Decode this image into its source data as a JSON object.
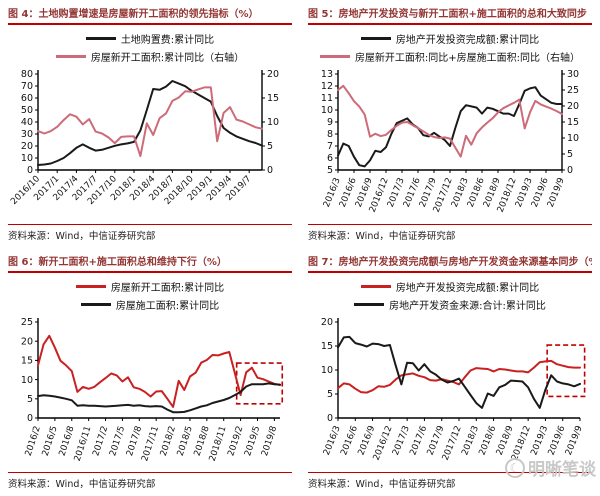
{
  "page": {
    "watermark": "明晰笔谈"
  },
  "colors": {
    "title": "#943634",
    "rule": "#c00000",
    "black_line": "#1a1a1a",
    "pink_line": "#cd6b78",
    "red_line": "#c92121",
    "highlight": "#c00000",
    "axis": "#000000",
    "watermark": "#c6c6c6"
  },
  "chart_data": [
    {
      "id": "fig4",
      "type": "line",
      "title": "图 4：土地购置增速是房屋新开工面积的领先指标（%）",
      "source": "资料来源：Wind，中信证券研究部",
      "x_count": 36,
      "x_tick_step": 3,
      "x_rotate": -45,
      "x_tick_labels": [
        "2016/10",
        "2017/1",
        "2017/4",
        "2017/7",
        "2017/10",
        "2018/1",
        "2018/4",
        "2018/7",
        "2018/10",
        "2019/1",
        "2019/4",
        "2019/7"
      ],
      "left_axis": {
        "min": 0,
        "max": 80,
        "step": 10
      },
      "right_axis": {
        "min": 0,
        "max": 20,
        "step": 5
      },
      "highlight": null,
      "series": [
        {
          "name": "土地购置费:累计同比",
          "color_key": "black_line",
          "axis": "left",
          "values": [
            4.2,
            4.6,
            5.4,
            7.5,
            10.0,
            14.0,
            18.5,
            21.3,
            18.5,
            16.2,
            16.8,
            18.5,
            20.2,
            21.3,
            22.2,
            23.4,
            33.0,
            50.0,
            67.5,
            66.8,
            69.5,
            74.2,
            72.0,
            69.8,
            66.0,
            63.0,
            60.0,
            57.0,
            45.0,
            35.0,
            31.0,
            28.0,
            26.0,
            24.0,
            22.5,
            20.3
          ]
        },
        {
          "name": "房屋新开工面积:累计同比（右轴）",
          "color_key": "pink_line",
          "axis": "right",
          "values": [
            8.1,
            7.6,
            8.1,
            9.0,
            10.4,
            11.6,
            11.1,
            9.5,
            10.6,
            8.0,
            7.6,
            6.8,
            5.6,
            6.9,
            7.0,
            7.0,
            2.9,
            9.7,
            7.3,
            10.8,
            11.8,
            14.4,
            15.1,
            16.4,
            16.3,
            16.8,
            17.2,
            17.2,
            6.0,
            11.9,
            13.1,
            10.5,
            10.1,
            9.5,
            8.9,
            8.6
          ]
        }
      ]
    },
    {
      "id": "fig5",
      "type": "line",
      "title": "图 5：房地产开发投资与新开工面积+施工面积的总和大致同步（%）",
      "source": "资料来源：Wind，中信证券研究部",
      "x_count": 43,
      "x_tick_step": 3,
      "x_rotate": -68,
      "x_tick_labels": [
        "2016/3",
        "2016/6",
        "2016/9",
        "2016/12",
        "2017/3",
        "2017/6",
        "2017/9",
        "2017/12",
        "2018/3",
        "2018/6",
        "2018/9",
        "2018/12",
        "2019/3",
        "2019/6",
        "2019/9"
      ],
      "left_axis": {
        "min": 5,
        "max": 13,
        "step": 1
      },
      "right_axis": {
        "min": 0,
        "max": 30,
        "step": 5
      },
      "highlight": null,
      "series": [
        {
          "name": "房地产开发投资完成额:累计同比",
          "color_key": "black_line",
          "axis": "left",
          "values": [
            6.2,
            7.2,
            7.0,
            6.1,
            5.4,
            5.3,
            5.8,
            6.6,
            6.5,
            6.9,
            8.0,
            8.9,
            9.1,
            9.3,
            8.8,
            8.5,
            7.9,
            7.8,
            8.1,
            7.8,
            7.5,
            7.0,
            8.5,
            9.9,
            10.4,
            10.3,
            10.2,
            9.7,
            10.2,
            10.1,
            9.9,
            9.7,
            9.7,
            9.5,
            10.5,
            11.6,
            11.8,
            11.9,
            11.2,
            10.9,
            10.6,
            10.5,
            10.5
          ]
        },
        {
          "name": "房屋新开工面积:同比+房屋施工面积:同比（右轴）",
          "color_key": "pink_line",
          "axis": "right",
          "values": [
            25.0,
            26.3,
            24.0,
            21.5,
            19.8,
            17.3,
            10.4,
            11.3,
            10.6,
            11.0,
            12.5,
            13.8,
            14.8,
            15.0,
            14.0,
            13.1,
            12.1,
            11.0,
            10.3,
            10.0,
            10.2,
            9.8,
            7.0,
            4.2,
            10.7,
            7.9,
            11.5,
            13.3,
            14.8,
            16.2,
            18.0,
            19.3,
            20.2,
            21.0,
            22.0,
            13.0,
            18.0,
            21.6,
            20.5,
            19.8,
            19.2,
            18.4,
            17.5
          ]
        }
      ]
    },
    {
      "id": "fig6",
      "type": "line",
      "title": "图 6：新开工面积+施工面积总和维持下行（%）",
      "source": "资料来源：Wind，中信证券研究部",
      "x_count": 44,
      "x_tick_step": 3,
      "x_rotate": -72,
      "x_tick_labels": [
        "2016/2",
        "2016/5",
        "2016/8",
        "2016/11",
        "2017/2",
        "2017/5",
        "2017/8",
        "2017/11",
        "2018/2",
        "2018/5",
        "2018/8",
        "2018/11",
        "2019/2",
        "2019/5",
        "2019/8"
      ],
      "left_axis": {
        "min": 0,
        "max": 25,
        "step": 5
      },
      "right_axis": null,
      "highlight": {
        "x0": 35.3,
        "x1": 43.4,
        "y0": 3.7,
        "y1": 14.3
      },
      "series": [
        {
          "name": "房屋新开工面积:累计同比",
          "color_key": "red_line",
          "axis": "left",
          "values": [
            13.7,
            19.2,
            21.4,
            18.3,
            14.9,
            13.7,
            12.2,
            6.8,
            8.1,
            7.6,
            8.1,
            9.3,
            10.4,
            11.6,
            11.1,
            9.5,
            10.6,
            8.0,
            7.6,
            6.8,
            5.6,
            6.9,
            7.0,
            5.0,
            2.9,
            9.7,
            7.3,
            10.8,
            11.8,
            14.4,
            15.1,
            16.4,
            16.3,
            16.8,
            17.2,
            11.5,
            6.0,
            11.9,
            13.1,
            10.5,
            10.1,
            9.5,
            8.9,
            8.6
          ]
        },
        {
          "name": "房屋施工面积:累计同比",
          "color_key": "black_line",
          "axis": "left",
          "values": [
            5.7,
            5.9,
            5.8,
            5.6,
            5.3,
            5.0,
            4.6,
            3.2,
            3.3,
            3.2,
            3.2,
            3.1,
            3.0,
            3.1,
            3.2,
            3.3,
            3.4,
            3.2,
            3.3,
            3.1,
            3.0,
            3.1,
            3.0,
            2.2,
            1.5,
            1.5,
            1.6,
            2.0,
            2.5,
            3.0,
            3.3,
            3.9,
            4.3,
            4.7,
            5.2,
            6.0,
            6.8,
            8.2,
            8.8,
            8.8,
            8.8,
            9.0,
            8.8,
            8.7
          ]
        }
      ]
    },
    {
      "id": "fig7",
      "type": "line",
      "title": "图 7：房地产开发投资完成额与房地产开发资金来源基本同步（%）",
      "source": "资料来源：Wind，中信证券研究部",
      "x_count": 43,
      "x_tick_step": 3,
      "x_rotate": -68,
      "x_tick_labels": [
        "2016/3",
        "2016/6",
        "2016/9",
        "2016/12",
        "2017/3",
        "2017/6",
        "2017/9",
        "2017/12",
        "2018/3",
        "2018/6",
        "2018/9",
        "2018/12",
        "2019/3",
        "2019/6",
        "2019/9"
      ],
      "left_axis": {
        "min": 0,
        "max": 20,
        "step": 5
      },
      "right_axis": null,
      "highlight": {
        "x0": 36.3,
        "x1": 42.8,
        "y0": 4.5,
        "y1": 15.2
      },
      "series": [
        {
          "name": "房地产开发投资完成额:累计同比",
          "color_key": "red_line",
          "axis": "left",
          "values": [
            6.2,
            7.2,
            7.0,
            6.1,
            5.4,
            5.3,
            5.8,
            6.6,
            6.5,
            6.9,
            8.0,
            8.9,
            9.1,
            9.3,
            8.8,
            8.5,
            7.9,
            7.8,
            8.1,
            7.8,
            7.5,
            7.0,
            8.5,
            9.9,
            10.4,
            10.3,
            10.2,
            9.7,
            10.2,
            10.1,
            9.9,
            9.7,
            9.7,
            9.5,
            10.5,
            11.6,
            11.8,
            11.9,
            11.2,
            10.9,
            10.6,
            10.5,
            10.5
          ]
        },
        {
          "name": "房地产开发资金来源:合计:累计同比",
          "color_key": "black_line",
          "axis": "left",
          "values": [
            14.7,
            16.8,
            16.9,
            15.6,
            15.3,
            14.9,
            15.5,
            15.4,
            15.0,
            15.2,
            11.0,
            7.0,
            11.5,
            11.4,
            9.9,
            11.2,
            9.7,
            9.0,
            8.0,
            7.4,
            7.7,
            8.2,
            6.5,
            4.8,
            3.1,
            2.1,
            5.1,
            4.6,
            6.4,
            6.9,
            7.8,
            7.7,
            7.6,
            6.4,
            4.0,
            2.1,
            5.9,
            8.9,
            7.6,
            7.2,
            7.0,
            6.6,
            7.1
          ]
        }
      ]
    }
  ]
}
